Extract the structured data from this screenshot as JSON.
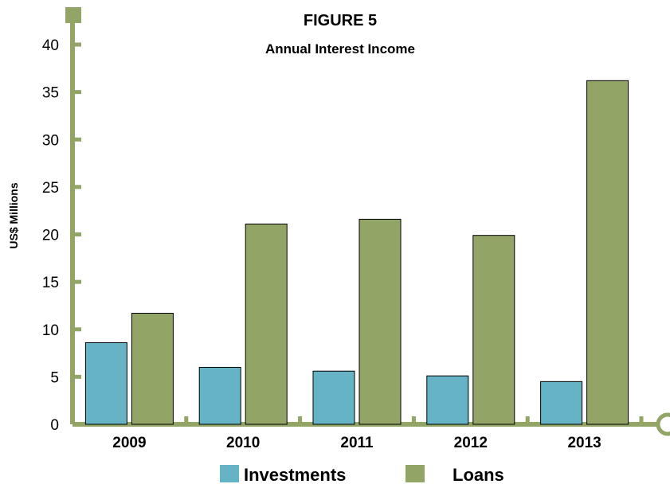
{
  "chart_data": {
    "type": "bar",
    "title": "FIGURE 5",
    "subtitle": "Annual Interest Income",
    "xlabel": "",
    "ylabel": "US$ Millions",
    "ylim": [
      0,
      40
    ],
    "yticks": [
      "0",
      "5",
      "10",
      "15",
      "20",
      "25",
      "30",
      "35",
      "40"
    ],
    "categories": [
      "2009",
      "2010",
      "2011",
      "2012",
      "2013"
    ],
    "series": [
      {
        "name": "Investments",
        "color": "#65b3c5",
        "values": [
          8.6,
          6.0,
          5.6,
          5.1,
          4.5
        ]
      },
      {
        "name": "Loans",
        "color": "#92a566",
        "values": [
          11.7,
          21.1,
          21.6,
          19.9,
          36.2
        ]
      }
    ],
    "grid": false,
    "legend": "bottom",
    "axis_color": "#92a566"
  }
}
